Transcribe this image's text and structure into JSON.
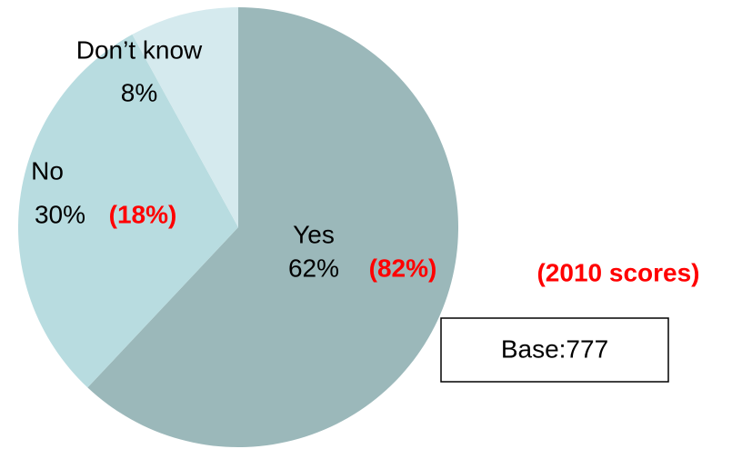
{
  "chart_data": {
    "type": "pie",
    "categories": [
      "Yes",
      "No",
      "Don’t know"
    ],
    "values": [
      62,
      30,
      8
    ],
    "value_labels": [
      "62%",
      "30%",
      "8%"
    ],
    "colors": [
      "#9bb8ba",
      "#b8dce0",
      "#d5eaee"
    ],
    "scores_2010": [
      {
        "value": 82,
        "label": "(82%)"
      },
      {
        "value": 18,
        "label": "(18%)"
      },
      null
    ],
    "annotation": "(2010 scores)",
    "base_label": "Base:777"
  }
}
